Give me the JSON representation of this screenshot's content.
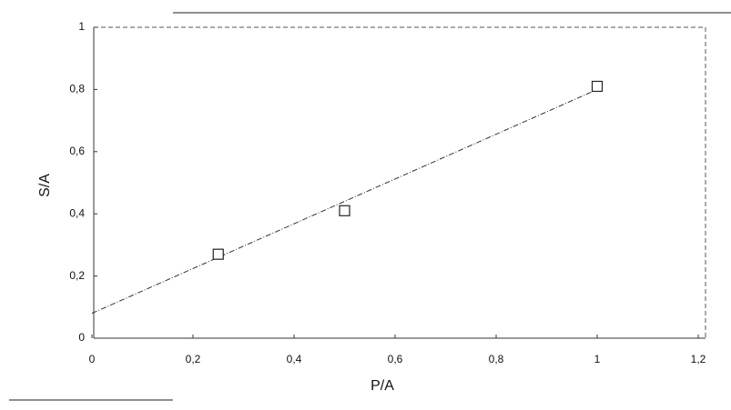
{
  "chart_data": {
    "type": "scatter",
    "x_label": "P/A",
    "y_label": "S/A",
    "series": [
      {
        "x": [
          0.25,
          0.5,
          1.0
        ],
        "values": [
          0.27,
          0.41,
          0.81
        ],
        "color": "#222222"
      }
    ],
    "trendline": {
      "x": [
        0,
        1.0
      ],
      "values": [
        0.08,
        0.8
      ],
      "color": "#333333"
    },
    "xlim": [
      0,
      1.2
    ],
    "xticks": [
      0,
      {
        "value": 0.2,
        "label": "0,2"
      },
      {
        "value": 0.4,
        "label": "0,4"
      },
      {
        "value": 0.6,
        "label": "0,6"
      },
      {
        "value": 0.8,
        "label": "0,8"
      },
      1,
      {
        "value": 1.2,
        "label": "1,2"
      }
    ],
    "ylim": [
      0,
      1
    ],
    "yticks": [
      0,
      {
        "value": 0.2,
        "label": "0,2"
      },
      {
        "value": 0.4,
        "label": "0,4"
      },
      {
        "value": 0.6,
        "label": "0,6"
      },
      {
        "value": 0.8,
        "label": "0,8"
      },
      1
    ],
    "grid": false
  }
}
